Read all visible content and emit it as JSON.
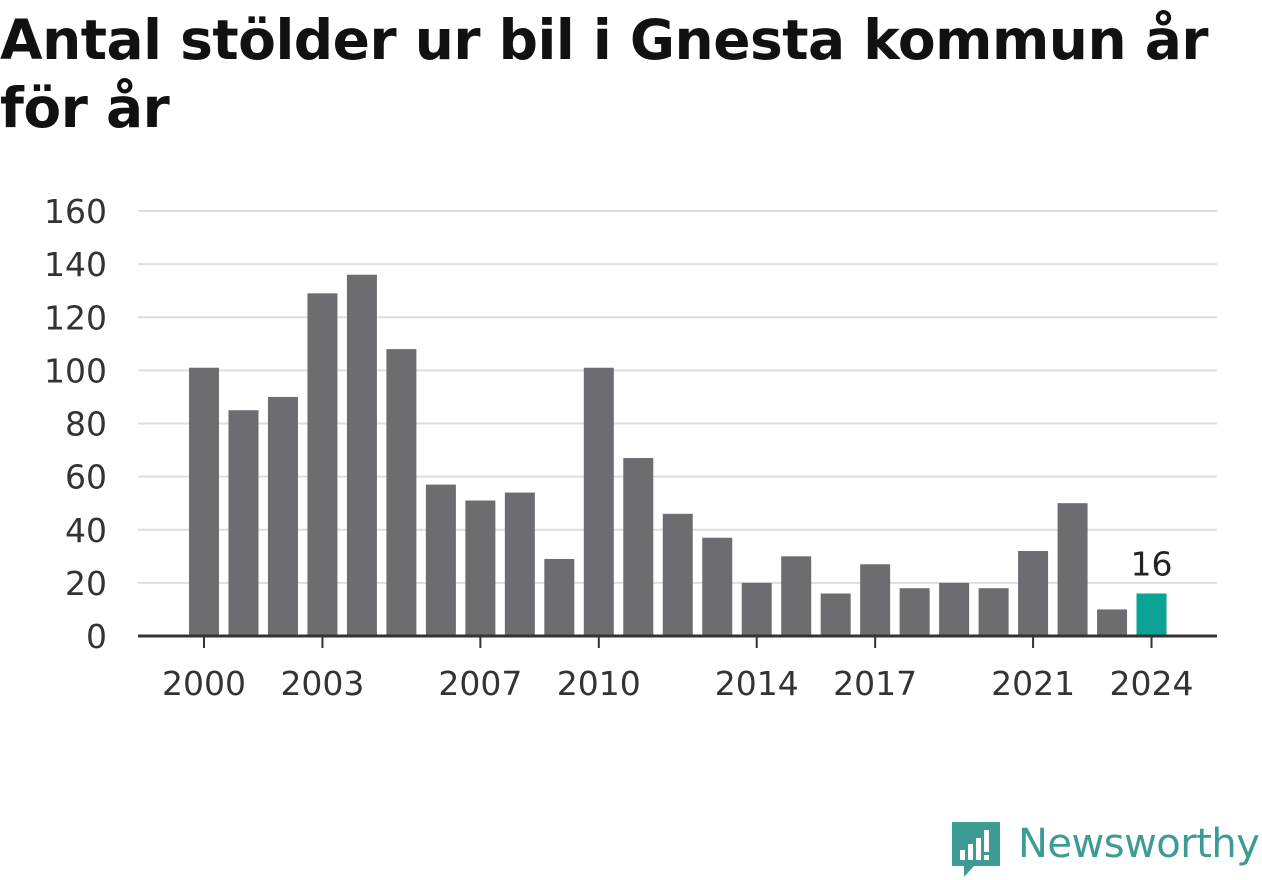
{
  "title": "Antal stölder ur bil i Gnesta kommun år för år",
  "brand": {
    "name": "Newsworthy",
    "color": "#3c9b93",
    "icon": "newsworthy-logo-icon"
  },
  "colors": {
    "bar": "#6d6c71",
    "highlight": "#0aa396",
    "grid": "#dedede",
    "axis": "#333333",
    "text": "#333333"
  },
  "chart_data": {
    "type": "bar",
    "title": "Antal stölder ur bil i Gnesta kommun år för år",
    "xlabel": "",
    "ylabel": "",
    "categories": [
      "2000",
      "2001",
      "2002",
      "2003",
      "2004",
      "2005",
      "2006",
      "2007",
      "2008",
      "2009",
      "2010",
      "2011",
      "2012",
      "2013",
      "2014",
      "2015",
      "2016",
      "2017",
      "2018",
      "2019",
      "2020",
      "2021",
      "2022",
      "2023",
      "2024"
    ],
    "values": [
      101,
      85,
      90,
      129,
      136,
      108,
      57,
      51,
      54,
      29,
      101,
      67,
      46,
      37,
      20,
      30,
      16,
      27,
      18,
      20,
      18,
      32,
      50,
      10,
      16
    ],
    "x_tick_labels": [
      "2000",
      "2003",
      "2007",
      "2010",
      "2014",
      "2017",
      "2021",
      "2024"
    ],
    "y_ticks": [
      0,
      20,
      40,
      60,
      80,
      100,
      120,
      140,
      160
    ],
    "ylim": [
      0,
      160
    ],
    "grid": true,
    "highlight": {
      "category": "2024",
      "label": "16"
    }
  }
}
